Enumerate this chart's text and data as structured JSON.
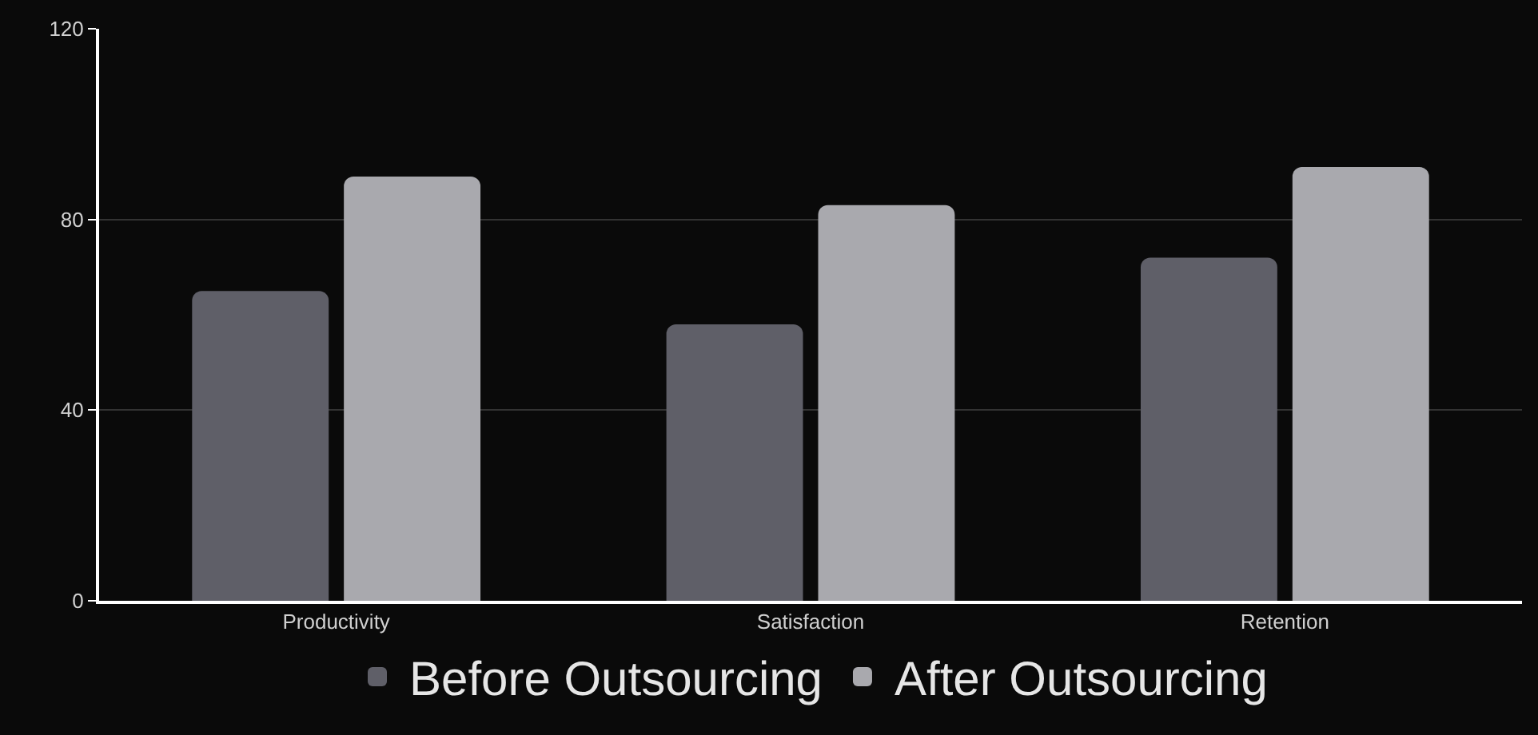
{
  "chart_data": {
    "type": "bar",
    "categories": [
      "Productivity",
      "Satisfaction",
      "Retention"
    ],
    "series": [
      {
        "name": "Before Outsourcing",
        "color": "#5f5f68",
        "values": [
          65,
          58,
          72
        ]
      },
      {
        "name": "After Outsourcing",
        "color": "#a9a9ae",
        "values": [
          89,
          83,
          91
        ]
      }
    ],
    "ylim": [
      0,
      120
    ],
    "yticks": [
      0,
      40,
      80,
      120
    ],
    "grid": "y",
    "legend": "bottom"
  }
}
